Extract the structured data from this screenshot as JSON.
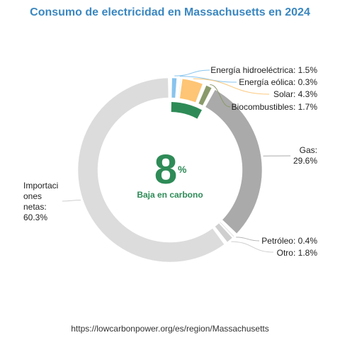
{
  "chart_data": {
    "type": "pie",
    "title": "Consumo de electricidad en Massachusetts en 2024",
    "slices": [
      {
        "name": "Energía hidroeléctrica",
        "value": 1.5,
        "label": "Energía hidroeléctrica: 1.5%",
        "color": "#88c4ee"
      },
      {
        "name": "Energía eólica",
        "value": 0.3,
        "label": "Energía eólica: 0.3%",
        "color": "#bde0f7"
      },
      {
        "name": "Solar",
        "value": 4.3,
        "label": "Solar: 4.3%",
        "color": "#fdc575"
      },
      {
        "name": "Biocombustibles",
        "value": 1.7,
        "label": "Biocombustibles: 1.7%",
        "color": "#8a9a6a"
      },
      {
        "name": "Gas",
        "value": 29.6,
        "label_lines": [
          "Gas:",
          "29.6%"
        ],
        "color": "#aaaaaa"
      },
      {
        "name": "Petróleo",
        "value": 0.4,
        "label": "Petróleo: 0.4%",
        "color": "#b5b5b5"
      },
      {
        "name": "Otro",
        "value": 1.8,
        "label": "Otro: 1.8%",
        "color": "#cfcfcf"
      },
      {
        "name": "Importaciones netas",
        "value": 60.3,
        "label_lines": [
          "Importaci",
          "ones",
          "netas:",
          "60.3%"
        ],
        "color": "#dcdcdc"
      }
    ],
    "low_carbon": {
      "value": "8",
      "unit": "%",
      "caption": "Baja en carbono",
      "share": 8.1,
      "color": "#2e8b57"
    }
  },
  "source": "https://lowcarbonpower.org/es/region/Massachusetts"
}
